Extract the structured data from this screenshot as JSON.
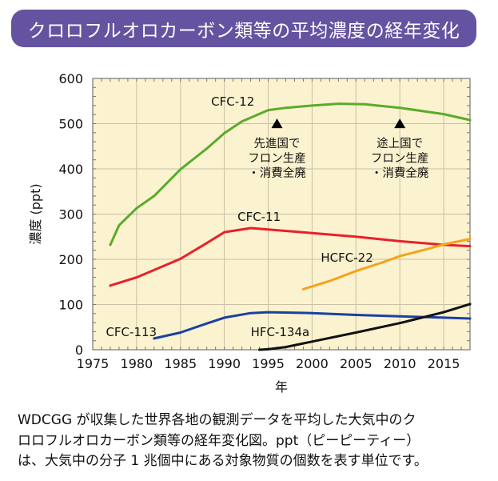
{
  "title": "クロロフルオロカーボン類等の平均濃度の経年変化",
  "chart_data": {
    "type": "line",
    "xlabel": "年",
    "ylabel": "濃度 (ppt)",
    "xlim": [
      1975,
      2018
    ],
    "ylim": [
      0,
      600
    ],
    "xticks": [
      1975,
      1980,
      1985,
      1990,
      1995,
      2000,
      2005,
      2010,
      2015
    ],
    "yticks": [
      0,
      100,
      200,
      300,
      400,
      500,
      600
    ],
    "grid": true,
    "background_color": "#fbf2cf",
    "series": [
      {
        "name": "CFC-12",
        "color": "#5aab2b",
        "x": [
          1977,
          1978,
          1980,
          1982,
          1985,
          1988,
          1990,
          1992,
          1995,
          1997,
          2000,
          2003,
          2006,
          2010,
          2015,
          2018
        ],
        "y": [
          232,
          275,
          313,
          340,
          399,
          445,
          479,
          505,
          530,
          535,
          540,
          544,
          543,
          535,
          521,
          508
        ]
      },
      {
        "name": "CFC-11",
        "color": "#e8202a",
        "x": [
          1977,
          1980,
          1985,
          1988,
          1990,
          1993,
          1995,
          2000,
          2005,
          2010,
          2015,
          2018
        ],
        "y": [
          142,
          160,
          201,
          236,
          260,
          269,
          266,
          258,
          250,
          240,
          232,
          229
        ]
      },
      {
        "name": "HCFC-22",
        "color": "#f5a21a",
        "x": [
          1999,
          2002,
          2005,
          2008,
          2010,
          2013,
          2015,
          2018
        ],
        "y": [
          134,
          152,
          174,
          193,
          207,
          222,
          233,
          245
        ]
      },
      {
        "name": "CFC-113",
        "color": "#1c3fa3",
        "x": [
          1982,
          1985,
          1988,
          1990,
          1993,
          1995,
          2000,
          2005,
          2010,
          2015,
          2018
        ],
        "y": [
          25,
          38,
          58,
          71,
          81,
          83,
          81,
          77,
          74,
          71,
          69
        ]
      },
      {
        "name": "HFC-134a",
        "color": "#111111",
        "x": [
          1994,
          1995,
          1997,
          2000,
          2005,
          2010,
          2015,
          2018
        ],
        "y": [
          0,
          1,
          6,
          18,
          38,
          59,
          83,
          101
        ]
      }
    ],
    "annotations": [
      {
        "year": 1996,
        "lines": [
          "先進国で",
          "フロン生産",
          "・消費全廃"
        ]
      },
      {
        "year": 2010,
        "lines": [
          "途上国で",
          "フロン生産",
          "・消費全廃"
        ]
      }
    ]
  },
  "caption": [
    "WDCGG が収集した世界各地の観測データを平均した大気中のク",
    "ロロフルオロカーボン類等の経年変化図。ppt（ピーピーティー）",
    "は、大気中の分子 1 兆個中にある対象物質の個数を表す単位です。"
  ]
}
